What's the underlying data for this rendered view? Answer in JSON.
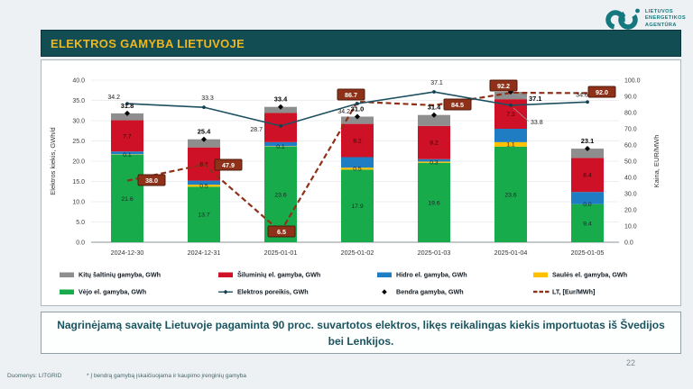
{
  "header": {
    "logo": {
      "lines": [
        "LIETUVOS",
        "ENERGETIKOS",
        "AGENTŪRA"
      ],
      "color": "#15787e"
    }
  },
  "title": "ELEKTROS GAMYBA LIETUVOJE",
  "chart_data": {
    "type": "bar",
    "stacked": true,
    "categories": [
      "2024-12-30",
      "2024-12-31",
      "2025-01-01",
      "2025-01-02",
      "2025-01-03",
      "2025-01-04",
      "2025-01-05"
    ],
    "series": [
      {
        "key": "wind",
        "name": "Vėjo el. gamyba, GWh",
        "color": "#18ab4c",
        "values": [
          21.6,
          13.7,
          23.6,
          17.9,
          19.6,
          23.6,
          9.4
        ],
        "labels": [
          "21.6",
          "13.7",
          "23.6",
          "17.9",
          "19.6",
          "23.6",
          "9.4"
        ]
      },
      {
        "key": "solar",
        "name": "Saulės el. gamyba, GWh",
        "color": "#ffc000",
        "values": [
          0.1,
          0.5,
          0.1,
          0.5,
          0.3,
          1.1,
          0.0
        ],
        "labels": [
          "0.1",
          "0.5",
          "0.1",
          "0.5",
          "0.3",
          "1.1",
          "0.0"
        ]
      },
      {
        "key": "hydro",
        "name": "Hidro el. gamyba, GWh",
        "color": "#1f7dc4",
        "values": [
          0.7,
          1.0,
          1.0,
          2.6,
          0.6,
          3.3,
          3.0
        ],
        "labels": [
          null,
          null,
          null,
          null,
          null,
          null,
          null
        ]
      },
      {
        "key": "thermal",
        "name": "Šiluminių el. gamyba, GWh",
        "color": "#ce1126",
        "values": [
          7.7,
          8.2,
          7.2,
          8.2,
          8.2,
          7.3,
          8.4
        ],
        "labels": [
          "7.7",
          "8.2",
          null,
          "8.2",
          "8.2",
          "7.3",
          "8.4"
        ]
      },
      {
        "key": "other",
        "name": "Kitų šaltinių gamyba, GWh",
        "color": "#8e8e8e",
        "values": [
          1.7,
          2.0,
          1.5,
          1.8,
          2.7,
          1.8,
          2.3
        ],
        "labels": [
          null,
          null,
          null,
          null,
          null,
          null,
          null
        ]
      }
    ],
    "lines": [
      {
        "key": "demand",
        "name": "Elektros poreikis, GWh",
        "color": "#1d5060",
        "style": "solid",
        "axis": "left",
        "values": [
          34.2,
          33.3,
          28.7,
          34.2,
          37.1,
          33.8,
          34.6
        ]
      },
      {
        "key": "total",
        "name": "Bendra gamyba, GWh",
        "color": "#000000",
        "style": "markers",
        "axis": "left",
        "values": [
          31.8,
          25.4,
          33.4,
          31.0,
          31.4,
          37.1,
          23.1
        ]
      },
      {
        "key": "price",
        "name": "LT, [Eur/MWh]",
        "color": "#8e3118",
        "style": "dashed",
        "axis": "right",
        "values": [
          38.0,
          47.9,
          6.5,
          86.7,
          84.5,
          92.2,
          92.0
        ]
      }
    ],
    "left_axis": {
      "label": "Elektros kiekis, GWh/d",
      "min": 0,
      "max": 40,
      "step": 5
    },
    "right_axis": {
      "label": "Kaina, EUR/MWh",
      "min": 0,
      "max": 100,
      "step": 10
    },
    "legend": [
      {
        "label": "Kitų šaltinių gamyba,  GWh",
        "swatch": "rect",
        "color": "#8e8e8e"
      },
      {
        "label": "Šiluminių el. gamyba, GWh",
        "swatch": "rect",
        "color": "#ce1126"
      },
      {
        "label": "Hidro el. gamyba, GWh",
        "swatch": "rect",
        "color": "#1f7dc4"
      },
      {
        "label": "Saulės el. gamyba, GWh",
        "swatch": "rect",
        "color": "#ffc000"
      },
      {
        "label": "Vėjo el. gamyba, GWh",
        "swatch": "rect",
        "color": "#18ab4c"
      },
      {
        "label": "Elektros poreikis, GWh",
        "swatch": "line-marker",
        "color": "#1d5060"
      },
      {
        "label": "Bendra gamyba, GWh",
        "swatch": "diamond",
        "color": "#000000"
      },
      {
        "label": "LT, [Eur/MWh]",
        "swatch": "dashes",
        "color": "#8e3118"
      }
    ]
  },
  "note": {
    "line1": "Nagrinėjamą savaitę Lietuvoje pagaminta 90 proc. suvartotos elektros, likęs reikalingas kiekis importuotas iš Švedijos",
    "line2": "bei Lenkijos."
  },
  "footer": {
    "source": "Duomenys: LITGRID",
    "asterisk": "* Į bendrą gamybą įskaičiuojama ir kaupimo įrenginių gamyba",
    "page": "22"
  }
}
